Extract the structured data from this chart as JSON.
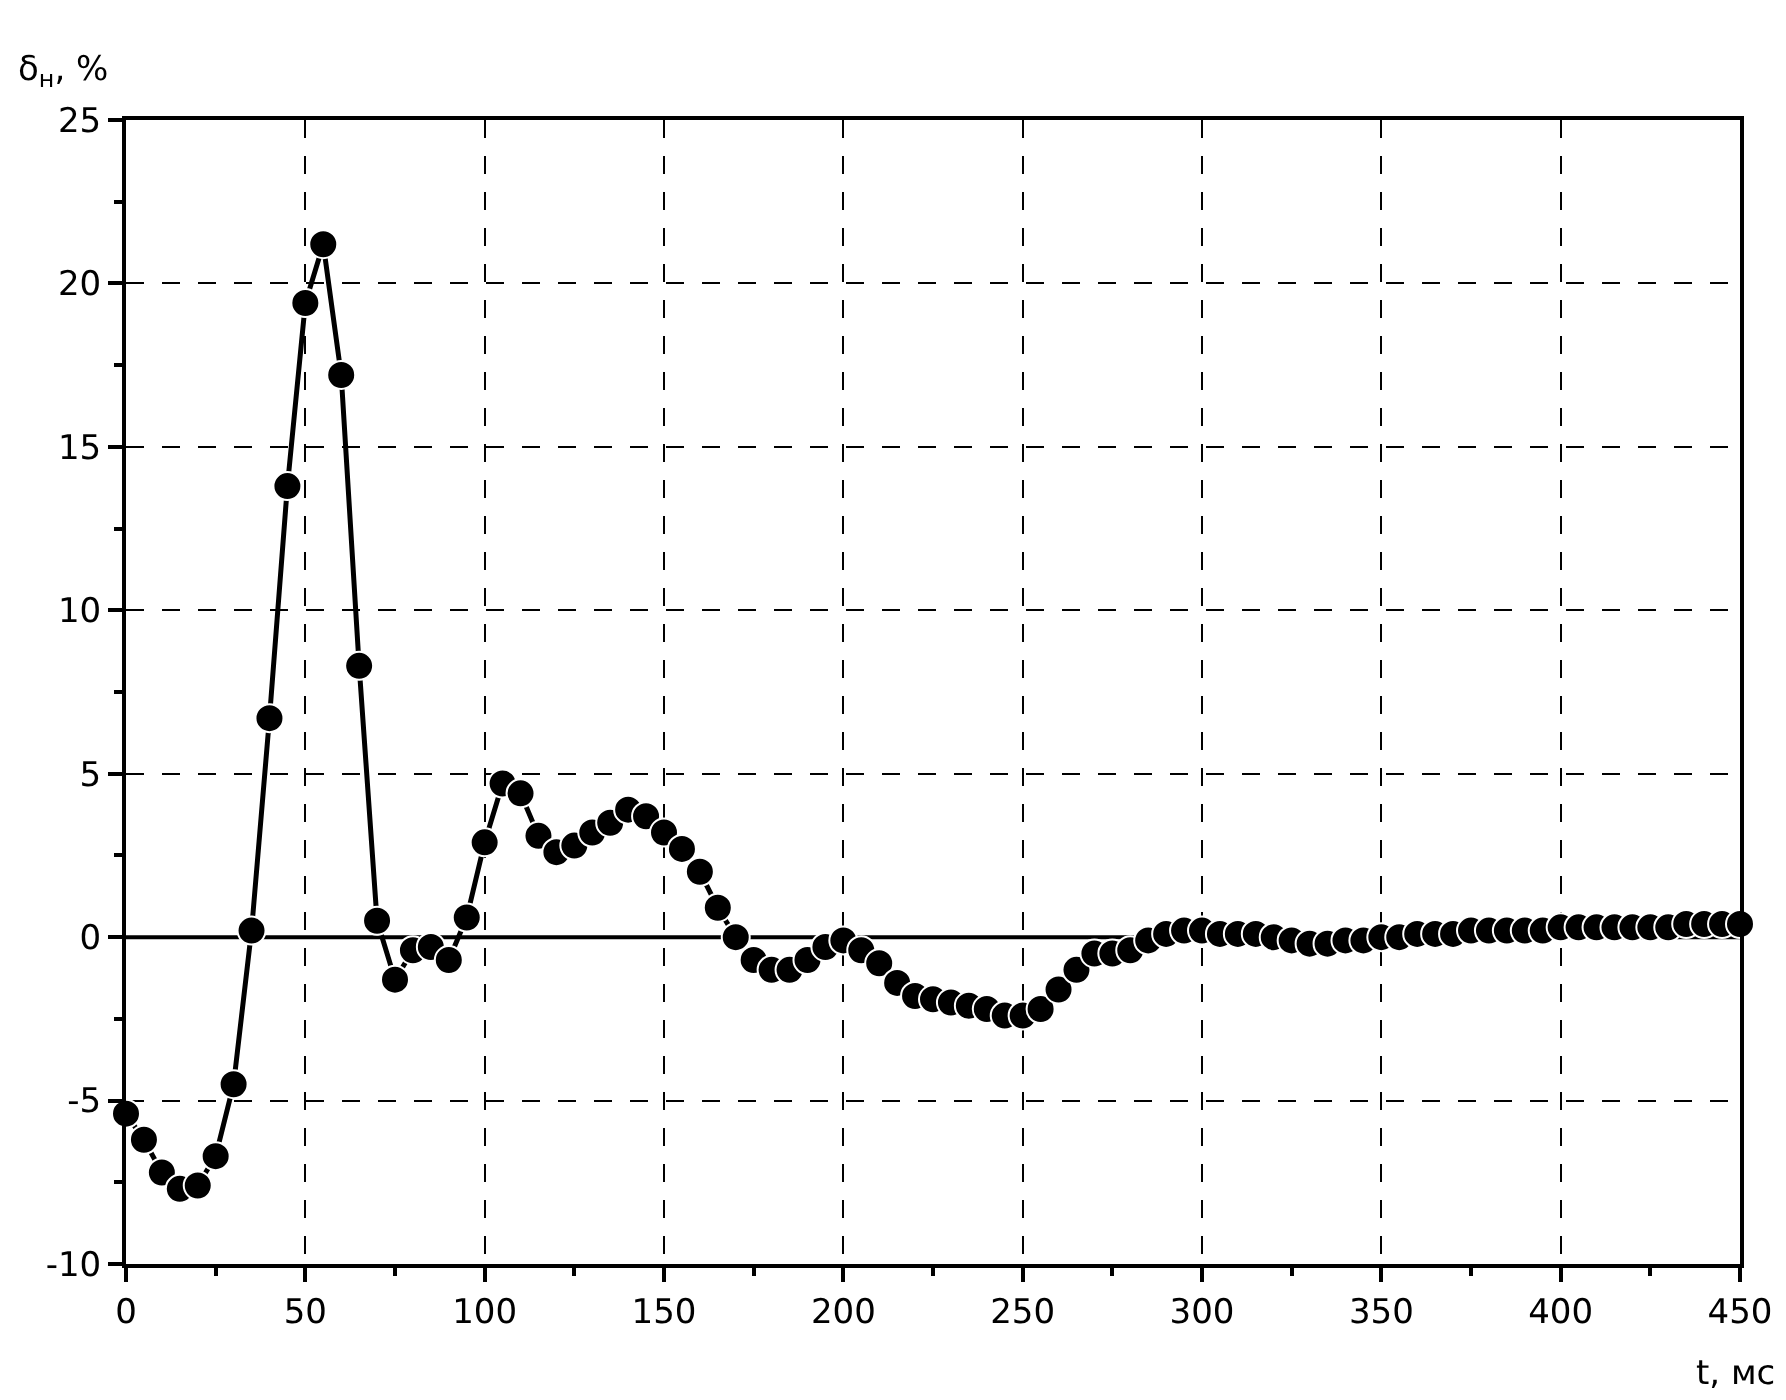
{
  "chart_data": {
    "type": "line",
    "xlabel": "t, мс",
    "ylabel": "δ$_{н}$, %",
    "x": [
      0,
      5,
      10,
      15,
      20,
      25,
      30,
      35,
      40,
      45,
      50,
      55,
      60,
      65,
      70,
      75,
      80,
      85,
      90,
      95,
      100,
      105,
      110,
      115,
      120,
      125,
      130,
      135,
      140,
      145,
      150,
      155,
      160,
      165,
      170,
      175,
      180,
      185,
      190,
      195,
      200,
      205,
      210,
      215,
      220,
      225,
      230,
      235,
      240,
      245,
      250,
      255,
      260,
      265,
      270,
      275,
      280,
      285,
      290,
      295,
      300,
      305,
      310,
      315,
      320,
      325,
      330,
      335,
      340,
      345,
      350,
      355,
      360,
      365,
      370,
      375,
      380,
      385,
      390,
      395,
      400,
      405,
      410,
      415,
      420,
      425,
      430,
      435,
      440,
      445,
      450
    ],
    "series": [
      {
        "color": "#000000",
        "values": [
          -5.4,
          -6.2,
          -7.2,
          -7.7,
          -7.6,
          -6.7,
          -4.5,
          0.2,
          6.7,
          13.8,
          19.4,
          21.2,
          17.2,
          8.3,
          0.5,
          -1.3,
          -0.4,
          -0.3,
          -0.7,
          0.6,
          2.9,
          4.7,
          4.4,
          3.1,
          2.6,
          2.8,
          3.2,
          3.5,
          3.9,
          3.7,
          3.2,
          2.7,
          2.0,
          0.9,
          0,
          -0.7,
          -1.0,
          -1.0,
          -0.7,
          -0.3,
          -0.1,
          -0.4,
          -0.8,
          -1.4,
          -1.8,
          -1.9,
          -2.0,
          -2.1,
          -2.2,
          -2.4,
          -2.4,
          -2.2,
          -1.6,
          -1.0,
          -0.5,
          -0.5,
          -0.4,
          -0.1,
          0.1,
          0.2,
          0.2,
          0.1,
          0.1,
          0.1,
          0.0,
          -0.1,
          -0.2,
          -0.2,
          -0.1,
          -0.1,
          0.0,
          0.0,
          0.1,
          0.1,
          0.1,
          0.2,
          0.2,
          0.2,
          0.2,
          0.2,
          0.3,
          0.3,
          0.3,
          0.3,
          0.3,
          0.3,
          0.3,
          0.4,
          0.4,
          0.4,
          0.4
        ]
      }
    ],
    "xlim": [
      0,
      450
    ],
    "xticks": [
      0,
      50,
      100,
      150,
      200,
      250,
      300,
      350,
      400,
      450
    ],
    "ylim": [
      -10,
      25
    ],
    "yticks": [
      -10,
      -5,
      0,
      5,
      10,
      15,
      20,
      25
    ],
    "grid": true,
    "marker": "circle",
    "line_style": "solid",
    "ref_lines": [
      {
        "axis": "y",
        "value": 0,
        "color": "#000000",
        "line_style": "solid"
      }
    ]
  }
}
